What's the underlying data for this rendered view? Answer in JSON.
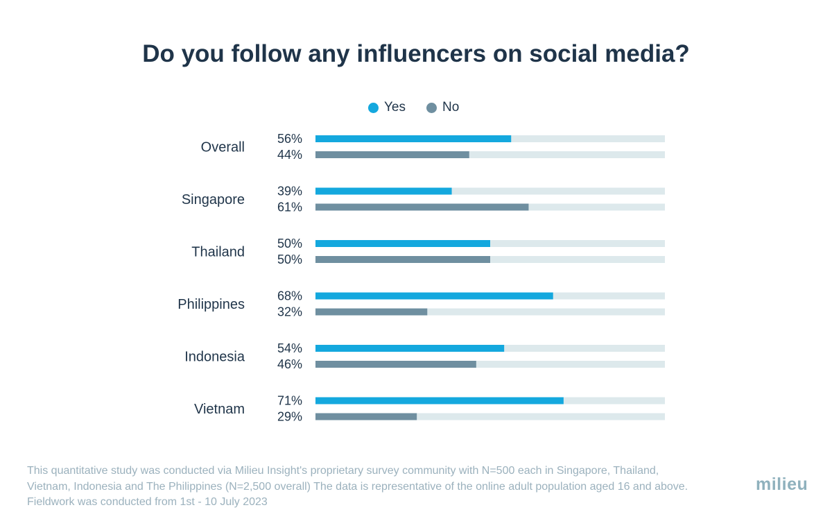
{
  "title": "Do you follow any influencers on social media?",
  "legend": [
    {
      "label": "Yes",
      "color": "#14a8de"
    },
    {
      "label": "No",
      "color": "#6f8fa0"
    }
  ],
  "chart_data": {
    "type": "bar",
    "orientation": "horizontal",
    "title": "Do you follow any influencers on social media?",
    "categories": [
      "Overall",
      "Singapore",
      "Thailand",
      "Philippines",
      "Indonesia",
      "Vietnam"
    ],
    "series": [
      {
        "name": "Yes",
        "color": "#14a8de",
        "values": [
          56,
          39,
          50,
          68,
          54,
          71
        ]
      },
      {
        "name": "No",
        "color": "#6f8fa0",
        "values": [
          44,
          61,
          50,
          32,
          46,
          29
        ]
      }
    ],
    "value_suffix": "%",
    "xlim": [
      0,
      100
    ],
    "track_color": "#dde9ec",
    "grid": false,
    "legend_position": "top-center"
  },
  "footnote": [
    "This quantitative study was conducted via Milieu Insight's proprietary survey community with N=500 each in Singapore, Thailand,",
    "Vietnam, Indonesia and The Philippines (N=2,500 overall) The data is representative of the online adult population aged 16 and above.",
    "Fieldwork was conducted from 1st  - 10 July 2023"
  ],
  "logo": "milieu"
}
